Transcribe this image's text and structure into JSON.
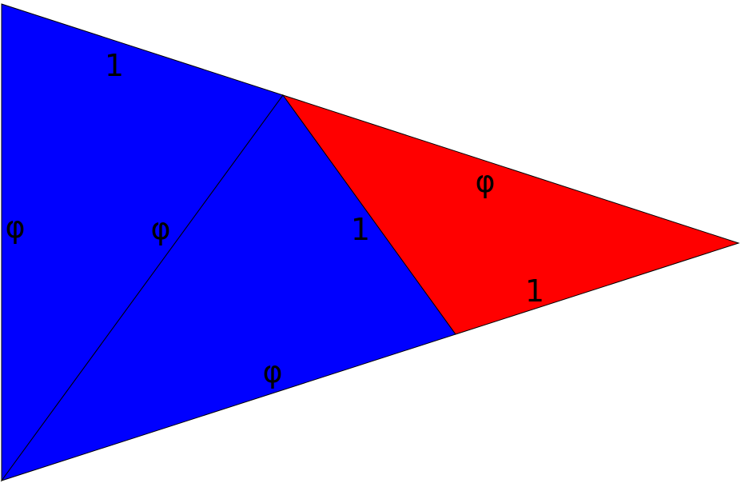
{
  "colors": {
    "blue": "#0000ff",
    "red": "#ff0000",
    "edge": "#000000",
    "background": "#ffffff"
  },
  "labels": {
    "top_left_edge": "1",
    "left_edge": "φ",
    "diagonal_edge": "φ",
    "middle_edge": "1",
    "red_top_edge": "φ",
    "red_bottom_edge": "1",
    "bottom_edge": "φ"
  }
}
